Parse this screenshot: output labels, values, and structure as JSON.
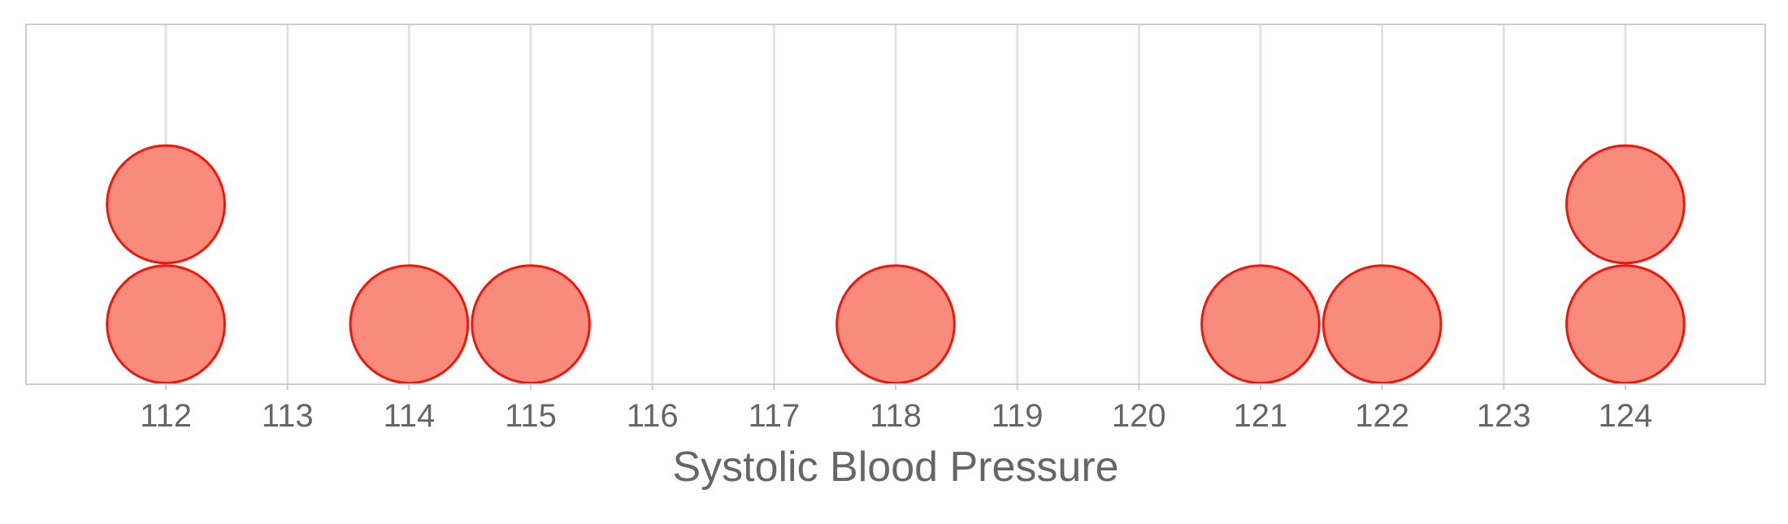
{
  "chart_data": {
    "type": "dotplot",
    "title": "",
    "xlabel": "Systolic Blood Pressure",
    "ylabel": "",
    "xlim": [
      110.85,
      125.15
    ],
    "x_ticks": [
      112,
      113,
      114,
      115,
      116,
      117,
      118,
      119,
      120,
      121,
      122,
      123,
      124
    ],
    "y_range_stack_units": [
      0,
      3
    ],
    "grid": {
      "vertical": true,
      "horizontal": false
    },
    "dot_fill": "#F88B7C",
    "dot_stroke": "#F0170A",
    "grid_color": "#E3E3E3",
    "frame_color": "#CCCCCC",
    "text_color": "#666666",
    "points": [
      {
        "x": 112,
        "count": 2
      },
      {
        "x": 114,
        "count": 1
      },
      {
        "x": 115,
        "count": 1
      },
      {
        "x": 118,
        "count": 1
      },
      {
        "x": 121,
        "count": 1
      },
      {
        "x": 122,
        "count": 1
      },
      {
        "x": 124,
        "count": 2
      }
    ]
  }
}
